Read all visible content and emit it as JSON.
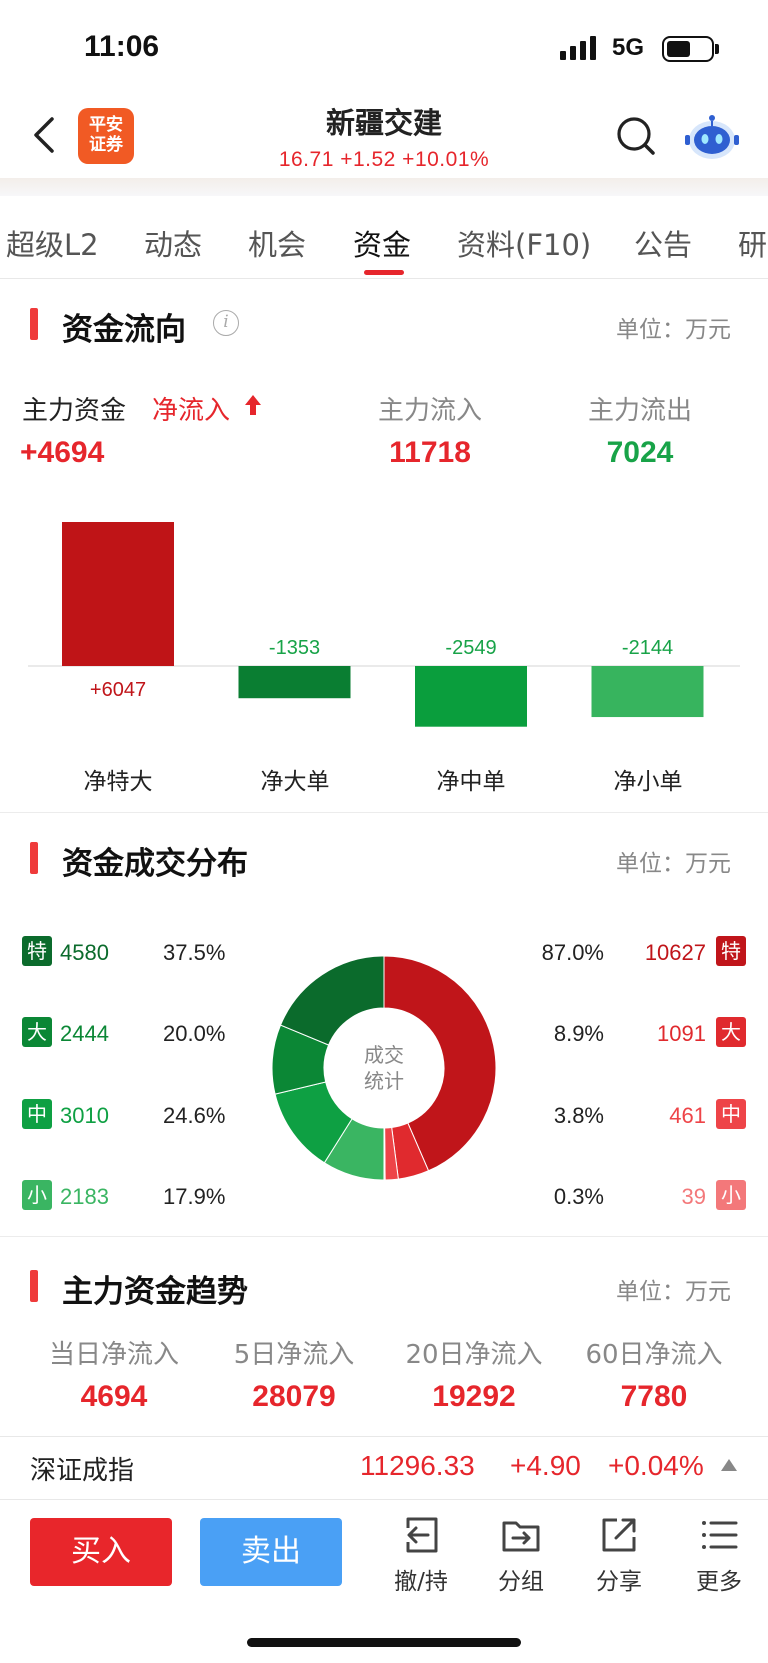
{
  "status": {
    "time": "11:06",
    "network": "5G",
    "battery_level": 0.55
  },
  "header": {
    "logo_line1": "平安",
    "logo_line2": "证券",
    "stock_name": "新疆交建",
    "quote": "16.71 +1.52 +10.01%",
    "quote_color": "#e6262c"
  },
  "tabs": [
    {
      "label": "超级L2"
    },
    {
      "label": "动态"
    },
    {
      "label": "机会"
    },
    {
      "label": "资金",
      "active": true
    },
    {
      "label": "资料(F10)"
    },
    {
      "label": "公告"
    },
    {
      "label": "研"
    }
  ],
  "fund_flow": {
    "title": "资金流向",
    "unit": "单位：万元",
    "main_label": "主力资金",
    "net_label": "净流入",
    "net_value": "+4694",
    "inflow_label": "主力流入",
    "inflow_value": "11718",
    "outflow_label": "主力流出",
    "outflow_value": "7024"
  },
  "chart_data": {
    "type": "bar",
    "categories": [
      "净特大",
      "净大单",
      "净中单",
      "净小单"
    ],
    "values": [
      6047,
      -1353,
      -2549,
      -2144
    ],
    "value_labels": [
      "+6047",
      "-1353",
      "-2549",
      "-2144"
    ],
    "colors": [
      "#bf1417",
      "#0a7e32",
      "#0a9e3d",
      "#37b45e"
    ],
    "title": "",
    "xlabel": "",
    "ylabel": "",
    "grid": false
  },
  "distribution": {
    "title": "资金成交分布",
    "unit": "单位：万元",
    "center_line1": "成交",
    "center_line2": "统计",
    "outflow": [
      {
        "badge": "特",
        "value": "4580",
        "pct": "37.5%",
        "color": "#0b6b2c"
      },
      {
        "badge": "大",
        "value": "2444",
        "pct": "20.0%",
        "color": "#0b8735"
      },
      {
        "badge": "中",
        "value": "3010",
        "pct": "24.6%",
        "color": "#0ea043"
      },
      {
        "badge": "小",
        "value": "2183",
        "pct": "17.9%",
        "color": "#3ab562"
      }
    ],
    "inflow": [
      {
        "badge": "特",
        "value": "10627",
        "pct": "87.0%",
        "color": "#c0151a"
      },
      {
        "badge": "大",
        "value": "1091",
        "pct": "8.9%",
        "color": "#e02a2e"
      },
      {
        "badge": "中",
        "value": "461",
        "pct": "3.8%",
        "color": "#ee4448"
      },
      {
        "badge": "小",
        "value": "39",
        "pct": "0.3%",
        "color": "#f3787a"
      }
    ]
  },
  "trend": {
    "title": "主力资金趋势",
    "unit": "单位：万元",
    "items": [
      {
        "label": "当日净流入",
        "value": "4694"
      },
      {
        "label": "5日净流入",
        "value": "28079"
      },
      {
        "label": "20日净流入",
        "value": "19292"
      },
      {
        "label": "60日净流入",
        "value": "7780"
      }
    ]
  },
  "index": {
    "name": "深证成指",
    "value": "11296.33",
    "change": "+4.90",
    "change_pct": "+0.04%"
  },
  "toolbar": {
    "buy": "买入",
    "sell": "卖出",
    "tools": [
      {
        "label": "撤/持",
        "icon": "cancel-hold-icon"
      },
      {
        "label": "分组",
        "icon": "folder-icon"
      },
      {
        "label": "分享",
        "icon": "share-icon"
      },
      {
        "label": "更多",
        "icon": "more-icon"
      }
    ]
  }
}
